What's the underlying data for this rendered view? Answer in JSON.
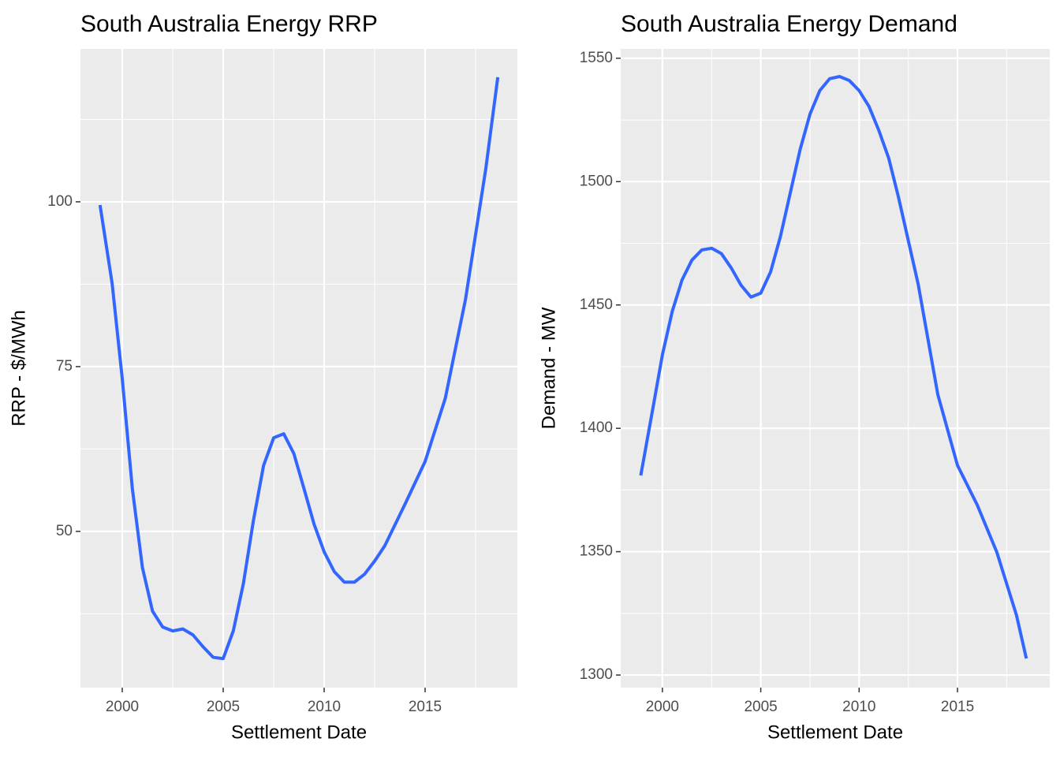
{
  "chart_data": [
    {
      "type": "line",
      "title": "South Australia Energy RRP",
      "x_label": "Settlement Date",
      "y_label": "RRP - $/MWh",
      "x": [
        1998.9,
        1999.5,
        2000,
        2000.5,
        2001,
        2001.5,
        2002,
        2002.5,
        2003,
        2003.5,
        2004,
        2004.5,
        2005,
        2005.5,
        2006,
        2006.5,
        2007,
        2007.5,
        2008,
        2008.5,
        2009,
        2009.5,
        2010,
        2010.5,
        2011,
        2011.5,
        2012,
        2012.5,
        2013,
        2014,
        2015,
        2016,
        2017,
        2018,
        2018.6
      ],
      "values": [
        99.5,
        87.6,
        73.2,
        56.5,
        44.5,
        37.9,
        35.5,
        34.9,
        35.2,
        34.3,
        32.5,
        30.9,
        30.7,
        34.9,
        42.1,
        51.7,
        60.0,
        64.2,
        64.8,
        61.8,
        56.5,
        51.1,
        46.9,
        43.9,
        42.3,
        42.3,
        43.5,
        45.5,
        47.8,
        54.1,
        60.6,
        70.2,
        85.2,
        104.9,
        118.9
      ],
      "color": "#3366FF",
      "grid": true,
      "xlim": [
        1997.93,
        2019.57
      ],
      "xticks": [
        2000,
        2005,
        2010,
        2015
      ],
      "ylim": [
        26.3,
        123.2
      ],
      "yticks": [
        50,
        75,
        100
      ]
    },
    {
      "type": "line",
      "title": "South Australia Energy Demand",
      "x_label": "Settlement Date",
      "y_label": "Demand - MW",
      "x": [
        1998.9,
        1999.5,
        2000,
        2000.5,
        2001,
        2001.5,
        2002,
        2002.5,
        2003,
        2003.5,
        2004,
        2004.5,
        2005,
        2005.5,
        2006,
        2006.5,
        2007,
        2007.5,
        2008,
        2008.5,
        2009,
        2009.5,
        2010,
        2010.5,
        2011,
        2011.5,
        2012,
        2013,
        2014,
        2015,
        2016,
        2017,
        2018,
        2018.5
      ],
      "values": [
        1380.9,
        1407.4,
        1429.8,
        1447.4,
        1460.2,
        1468.2,
        1472.3,
        1473,
        1470.8,
        1465,
        1458,
        1453.2,
        1454.8,
        1463.4,
        1477.8,
        1495.4,
        1513,
        1527.3,
        1536.9,
        1541.7,
        1542.6,
        1541,
        1536.9,
        1530.5,
        1520.8,
        1509.6,
        1493.7,
        1458.5,
        1413.7,
        1385,
        1369,
        1349.8,
        1324.2,
        1306.7
      ],
      "color": "#3366FF",
      "grid": true,
      "xlim": [
        1997.88,
        2019.69
      ],
      "xticks": [
        2000,
        2005,
        2010,
        2015
      ],
      "ylim": [
        1294.9,
        1553.8
      ],
      "yticks": [
        1300,
        1350,
        1400,
        1450,
        1500,
        1550
      ]
    }
  ]
}
